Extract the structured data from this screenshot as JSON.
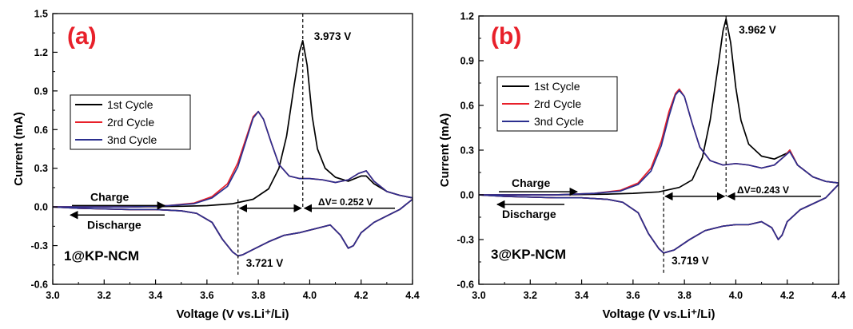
{
  "chart_data": [
    {
      "type": "line",
      "panel_label": "(a)",
      "sample_label": "1@KP-NCM",
      "xlabel": "Voltage (V vs.Li⁺/Li)",
      "ylabel": "Current (mA)",
      "xlim": [
        3.0,
        4.4
      ],
      "ylim": [
        -0.6,
        1.5
      ],
      "xticks": [
        "3.0",
        "3.2",
        "3.4",
        "3.6",
        "3.8",
        "4.0",
        "4.2",
        "4.4"
      ],
      "yticks": [
        "-0.6",
        "-0.3",
        "0.0",
        "0.3",
        "0.6",
        "0.9",
        "1.2",
        "1.5"
      ],
      "legend_position": "upper-left",
      "series": [
        {
          "name": "1st Cycle",
          "color": "#000000",
          "x": [
            3.0,
            3.3,
            3.5,
            3.6,
            3.7,
            3.78,
            3.84,
            3.88,
            3.91,
            3.94,
            3.96,
            3.973,
            3.99,
            4.01,
            4.03,
            4.06,
            4.1,
            4.15,
            4.2,
            4.22,
            4.25,
            4.3,
            4.35,
            4.4,
            4.4,
            4.35,
            4.3,
            4.25,
            4.2,
            4.17,
            4.15,
            4.12,
            4.08,
            4.02,
            3.96,
            3.9,
            3.84,
            3.78,
            3.74,
            3.721,
            3.7,
            3.66,
            3.62,
            3.56,
            3.5,
            3.4,
            3.3,
            3.1,
            3.0
          ],
          "y": [
            0.0,
            0.0,
            0.005,
            0.01,
            0.025,
            0.06,
            0.14,
            0.3,
            0.55,
            0.95,
            1.2,
            1.29,
            1.1,
            0.7,
            0.45,
            0.3,
            0.23,
            0.2,
            0.24,
            0.24,
            0.18,
            0.12,
            0.09,
            0.07,
            0.06,
            -0.02,
            -0.07,
            -0.12,
            -0.2,
            -0.3,
            -0.32,
            -0.22,
            -0.14,
            -0.17,
            -0.2,
            -0.22,
            -0.27,
            -0.33,
            -0.37,
            -0.38,
            -0.35,
            -0.25,
            -0.12,
            -0.05,
            -0.03,
            -0.02,
            -0.02,
            -0.01,
            0.0
          ]
        },
        {
          "name": "2rd Cycle",
          "color": "#e8202a",
          "x": [
            3.0,
            3.3,
            3.45,
            3.55,
            3.62,
            3.68,
            3.72,
            3.75,
            3.78,
            3.8,
            3.82,
            3.85,
            3.88,
            3.92,
            3.96,
            4.0,
            4.05,
            4.1,
            4.15,
            4.19,
            4.22,
            4.25,
            4.3,
            4.35,
            4.4,
            4.4,
            4.35,
            4.3,
            4.25,
            4.2,
            4.17,
            4.15,
            4.12,
            4.08,
            4.02,
            3.96,
            3.9,
            3.84,
            3.78,
            3.74,
            3.721,
            3.7,
            3.66,
            3.62,
            3.56,
            3.5,
            3.4,
            3.3,
            3.1,
            3.0
          ],
          "y": [
            0.0,
            0.0,
            0.01,
            0.03,
            0.08,
            0.18,
            0.34,
            0.52,
            0.7,
            0.74,
            0.68,
            0.5,
            0.33,
            0.24,
            0.22,
            0.22,
            0.21,
            0.19,
            0.21,
            0.26,
            0.28,
            0.2,
            0.12,
            0.09,
            0.07,
            0.06,
            -0.02,
            -0.07,
            -0.12,
            -0.2,
            -0.3,
            -0.32,
            -0.22,
            -0.14,
            -0.17,
            -0.2,
            -0.22,
            -0.27,
            -0.33,
            -0.37,
            -0.38,
            -0.35,
            -0.25,
            -0.12,
            -0.05,
            -0.03,
            -0.02,
            -0.02,
            -0.01,
            0.0
          ]
        },
        {
          "name": "3nd Cycle",
          "color": "#2b2f8f",
          "x": [
            3.0,
            3.3,
            3.45,
            3.55,
            3.62,
            3.68,
            3.72,
            3.75,
            3.78,
            3.8,
            3.82,
            3.85,
            3.88,
            3.92,
            3.96,
            4.0,
            4.05,
            4.1,
            4.15,
            4.19,
            4.22,
            4.25,
            4.3,
            4.35,
            4.4,
            4.4,
            4.35,
            4.3,
            4.25,
            4.2,
            4.17,
            4.15,
            4.12,
            4.08,
            4.02,
            3.96,
            3.9,
            3.84,
            3.78,
            3.74,
            3.721,
            3.7,
            3.66,
            3.62,
            3.56,
            3.5,
            3.4,
            3.3,
            3.1,
            3.0
          ],
          "y": [
            0.0,
            0.0,
            0.01,
            0.025,
            0.07,
            0.16,
            0.31,
            0.5,
            0.69,
            0.74,
            0.68,
            0.5,
            0.33,
            0.24,
            0.22,
            0.22,
            0.21,
            0.19,
            0.21,
            0.26,
            0.28,
            0.2,
            0.12,
            0.09,
            0.07,
            0.06,
            -0.02,
            -0.07,
            -0.12,
            -0.2,
            -0.3,
            -0.32,
            -0.22,
            -0.14,
            -0.17,
            -0.2,
            -0.22,
            -0.27,
            -0.33,
            -0.37,
            -0.38,
            -0.35,
            -0.25,
            -0.12,
            -0.05,
            -0.03,
            -0.02,
            -0.02,
            -0.01,
            0.0
          ]
        }
      ],
      "annotations": {
        "ox_peak": {
          "label": "3.973 V",
          "x": 3.973,
          "y": 1.29
        },
        "red_peak": {
          "label": "3.721 V",
          "x": 3.721,
          "y": -0.38
        },
        "delta": {
          "label": "ΔV= 0.252 V",
          "y": -0.01
        },
        "charge": {
          "label": "Charge",
          "y": 0.085
        },
        "discharge": {
          "label": "Discharge",
          "y": -0.075
        }
      }
    },
    {
      "type": "line",
      "panel_label": "(b)",
      "sample_label": "3@KP-NCM",
      "xlabel": "Voltage (V vs.Li⁺/Li)",
      "ylabel": "Current (mA)",
      "xlim": [
        3.0,
        4.4
      ],
      "ylim": [
        -0.6,
        1.2
      ],
      "xticks": [
        "3.0",
        "3.2",
        "3.4",
        "3.6",
        "3.8",
        "4.0",
        "4.2",
        "4.4"
      ],
      "yticks": [
        "-0.6",
        "-0.3",
        "0.0",
        "0.3",
        "0.6",
        "0.9",
        "1.2"
      ],
      "legend_position": "upper-left",
      "series": [
        {
          "name": "1st Cycle",
          "color": "#000000",
          "x": [
            3.0,
            3.3,
            3.5,
            3.6,
            3.7,
            3.78,
            3.83,
            3.87,
            3.9,
            3.93,
            3.95,
            3.962,
            3.98,
            4.0,
            4.02,
            4.05,
            4.1,
            4.15,
            4.2,
            4.21,
            4.24,
            4.3,
            4.35,
            4.4,
            4.4,
            4.35,
            4.3,
            4.25,
            4.2,
            4.18,
            4.165,
            4.14,
            4.1,
            4.05,
            4.0,
            3.95,
            3.88,
            3.82,
            3.76,
            3.719,
            3.7,
            3.66,
            3.62,
            3.56,
            3.5,
            3.4,
            3.3,
            3.1,
            3.0
          ],
          "y": [
            0.0,
            0.0,
            0.005,
            0.01,
            0.02,
            0.05,
            0.1,
            0.25,
            0.5,
            0.85,
            1.1,
            1.18,
            1.02,
            0.72,
            0.5,
            0.34,
            0.26,
            0.24,
            0.28,
            0.3,
            0.2,
            0.12,
            0.09,
            0.08,
            0.07,
            -0.02,
            -0.06,
            -0.1,
            -0.18,
            -0.27,
            -0.3,
            -0.22,
            -0.18,
            -0.2,
            -0.2,
            -0.21,
            -0.24,
            -0.3,
            -0.37,
            -0.39,
            -0.36,
            -0.26,
            -0.12,
            -0.05,
            -0.03,
            -0.02,
            -0.02,
            -0.01,
            0.0
          ]
        },
        {
          "name": "2rd Cycle",
          "color": "#e8202a",
          "x": [
            3.0,
            3.3,
            3.45,
            3.55,
            3.62,
            3.67,
            3.71,
            3.74,
            3.765,
            3.78,
            3.8,
            3.83,
            3.86,
            3.9,
            3.95,
            4.0,
            4.05,
            4.1,
            4.15,
            4.19,
            4.21,
            4.24,
            4.3,
            4.35,
            4.4,
            4.4,
            4.35,
            4.3,
            4.25,
            4.2,
            4.18,
            4.165,
            4.14,
            4.1,
            4.05,
            4.0,
            3.95,
            3.88,
            3.82,
            3.76,
            3.719,
            3.7,
            3.66,
            3.62,
            3.56,
            3.5,
            3.4,
            3.3,
            3.1,
            3.0
          ],
          "y": [
            0.0,
            0.0,
            0.01,
            0.03,
            0.08,
            0.18,
            0.36,
            0.56,
            0.68,
            0.71,
            0.66,
            0.48,
            0.32,
            0.23,
            0.2,
            0.21,
            0.2,
            0.18,
            0.2,
            0.26,
            0.3,
            0.2,
            0.12,
            0.09,
            0.08,
            0.07,
            -0.02,
            -0.06,
            -0.1,
            -0.18,
            -0.27,
            -0.3,
            -0.22,
            -0.18,
            -0.2,
            -0.2,
            -0.21,
            -0.24,
            -0.3,
            -0.37,
            -0.39,
            -0.36,
            -0.26,
            -0.12,
            -0.05,
            -0.03,
            -0.02,
            -0.02,
            -0.01,
            0.0
          ]
        },
        {
          "name": "3nd Cycle",
          "color": "#2b2f8f",
          "x": [
            3.0,
            3.3,
            3.45,
            3.55,
            3.62,
            3.67,
            3.71,
            3.74,
            3.765,
            3.78,
            3.8,
            3.83,
            3.86,
            3.9,
            3.95,
            4.0,
            4.05,
            4.1,
            4.15,
            4.19,
            4.21,
            4.24,
            4.3,
            4.35,
            4.4,
            4.4,
            4.35,
            4.3,
            4.25,
            4.2,
            4.18,
            4.165,
            4.14,
            4.1,
            4.05,
            4.0,
            3.95,
            3.88,
            3.82,
            3.76,
            3.719,
            3.7,
            3.66,
            3.62,
            3.56,
            3.5,
            3.4,
            3.3,
            3.1,
            3.0
          ],
          "y": [
            0.0,
            0.0,
            0.01,
            0.025,
            0.07,
            0.16,
            0.33,
            0.53,
            0.67,
            0.7,
            0.66,
            0.48,
            0.32,
            0.23,
            0.2,
            0.21,
            0.2,
            0.18,
            0.2,
            0.26,
            0.29,
            0.2,
            0.12,
            0.09,
            0.08,
            0.07,
            -0.02,
            -0.06,
            -0.1,
            -0.18,
            -0.27,
            -0.3,
            -0.22,
            -0.18,
            -0.2,
            -0.2,
            -0.21,
            -0.24,
            -0.3,
            -0.37,
            -0.39,
            -0.36,
            -0.26,
            -0.12,
            -0.05,
            -0.03,
            -0.02,
            -0.02,
            -0.01,
            0.0
          ]
        }
      ],
      "annotations": {
        "ox_peak": {
          "label": "3.962 V",
          "x": 3.962,
          "y": 1.18
        },
        "red_peak": {
          "label": "3.719 V",
          "x": 3.719,
          "y": -0.39
        },
        "delta": {
          "label": "ΔV=0.243 V",
          "y": -0.01
        },
        "charge": {
          "label": "Charge",
          "y": 0.085
        },
        "discharge": {
          "label": "Discharge",
          "y": -0.075
        }
      }
    }
  ]
}
